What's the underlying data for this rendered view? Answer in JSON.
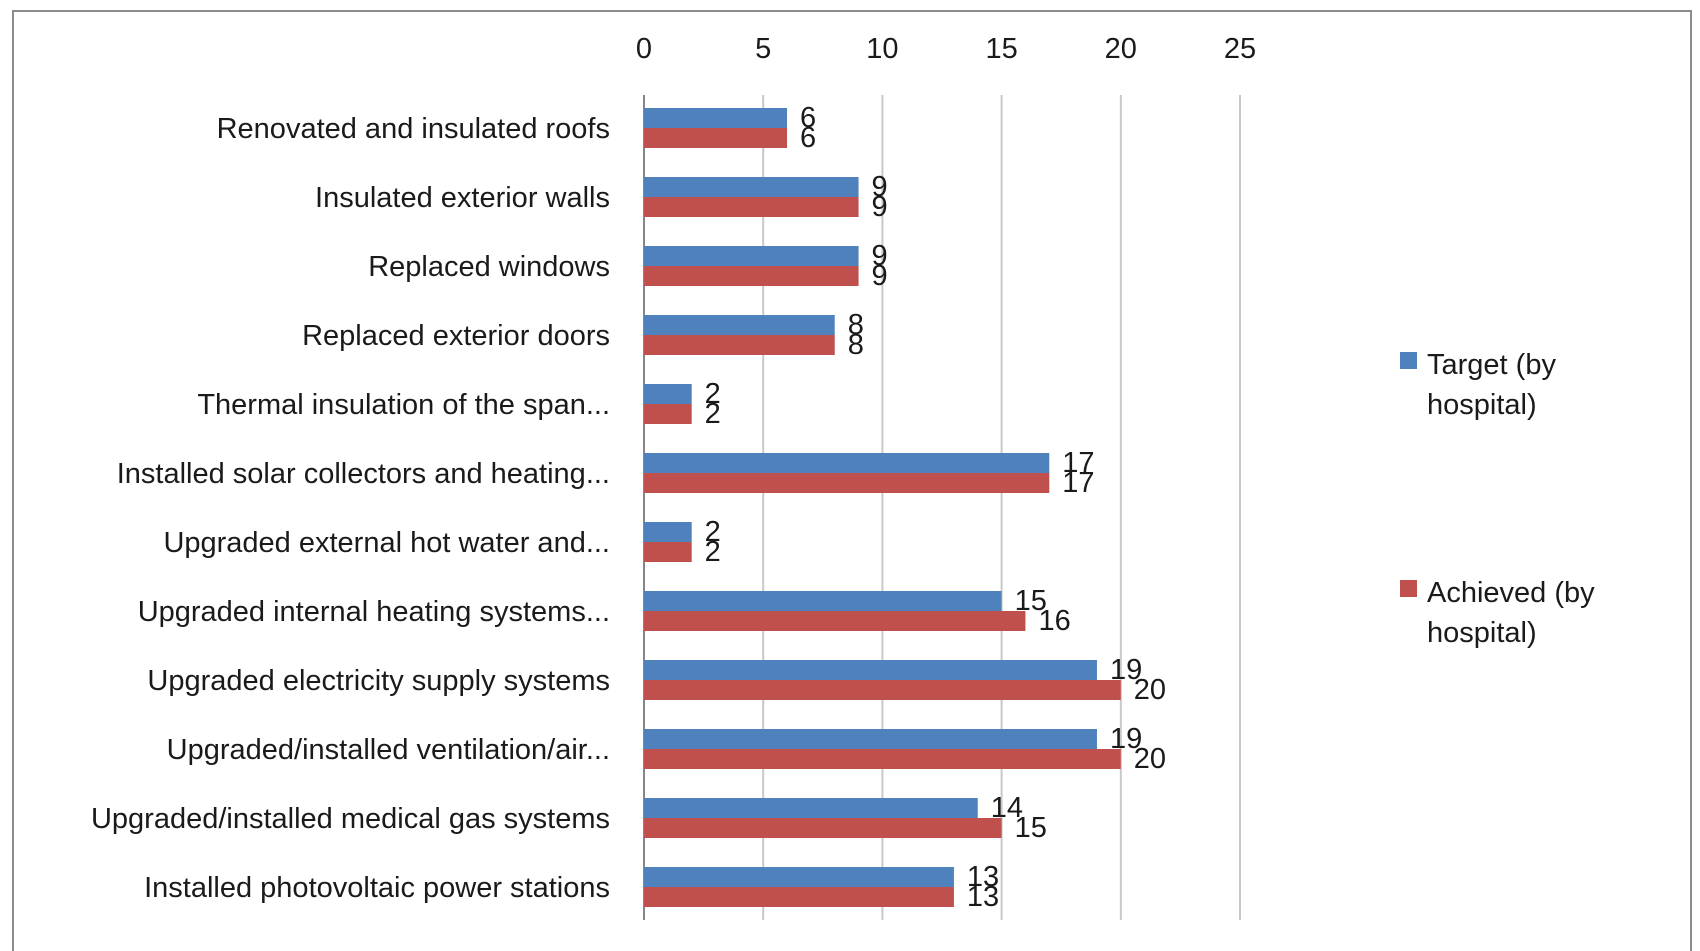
{
  "chart_data": {
    "type": "bar",
    "orientation": "horizontal",
    "title": "",
    "xlabel": "",
    "ylabel": "",
    "xlim": [
      0,
      25
    ],
    "x_ticks": [
      0,
      5,
      10,
      15,
      20,
      25
    ],
    "x_axis_position": "top",
    "grid": true,
    "legend_position": "right",
    "categories": [
      "Renovated and insulated roofs",
      "Insulated exterior walls",
      "Replaced windows",
      "Replaced exterior doors",
      "Thermal insulation of the span...",
      "Installed solar collectors and heating...",
      "Upgraded external hot water and...",
      "Upgraded internal heating systems...",
      "Upgraded electricity supply systems",
      "Upgraded/installed ventilation/air...",
      "Upgraded/installed medical gas systems",
      "Installed photovoltaic power stations"
    ],
    "series": [
      {
        "name": "Target (by hospital)",
        "legend_lines": [
          "Target (by",
          "hospital)"
        ],
        "color": "#4F81BD",
        "values": [
          6,
          9,
          9,
          8,
          2,
          17,
          2,
          15,
          19,
          19,
          14,
          13
        ]
      },
      {
        "name": "Achieved (by hospital)",
        "legend_lines": [
          "Achieved (by",
          "hospital)"
        ],
        "color": "#C0504D",
        "values": [
          6,
          9,
          9,
          8,
          2,
          17,
          2,
          16,
          20,
          20,
          15,
          13
        ]
      }
    ]
  }
}
